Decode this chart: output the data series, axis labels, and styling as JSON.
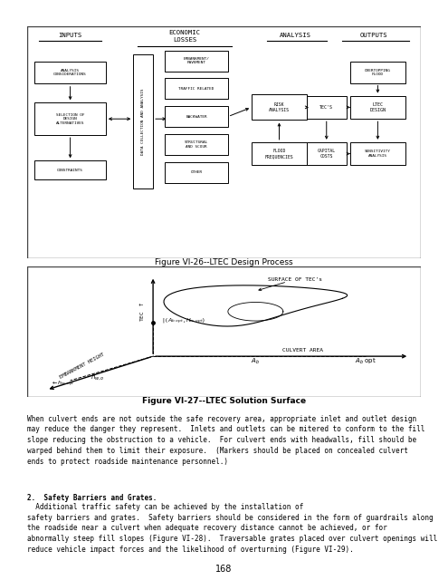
{
  "bg_color": "#ffffff",
  "fig1_caption": "Figure VI-26--LTEC Design Process",
  "fig2_caption": "Figure VI-27--LTEC Solution Surface",
  "page_number": "168",
  "paragraph1": "When culvert ends are not outside the safe recovery area, appropriate inlet and outlet design\nmay reduce the danger they represent.  Inlets and outlets can be mitered to conform to the fill\nslope reducing the obstruction to a vehicle.  For culvert ends with headwalls, fill should be\nwarped behind them to limit their exposure.  (Markers should be placed on concealed culvert\nends to protect roadside maintenance personnel.)",
  "paragraph2_bold": "2.  Safety Barriers and Grates.",
  "paragraph2_rest": "  Additional traffic safety can be achieved by the installation of\nsafety barriers and grates.  Safety barriers should be considered in the form of guardrails along\nthe roadside near a culvert when adequate recovery distance cannot be achieved, or for\nabnormally steep fill slopes (Figure VI-28).  Traversable grates placed over culvert openings will\nreduce vehicle impact forces and the likelihood of overturning (Figure VI-29).",
  "text_color": "#000000"
}
